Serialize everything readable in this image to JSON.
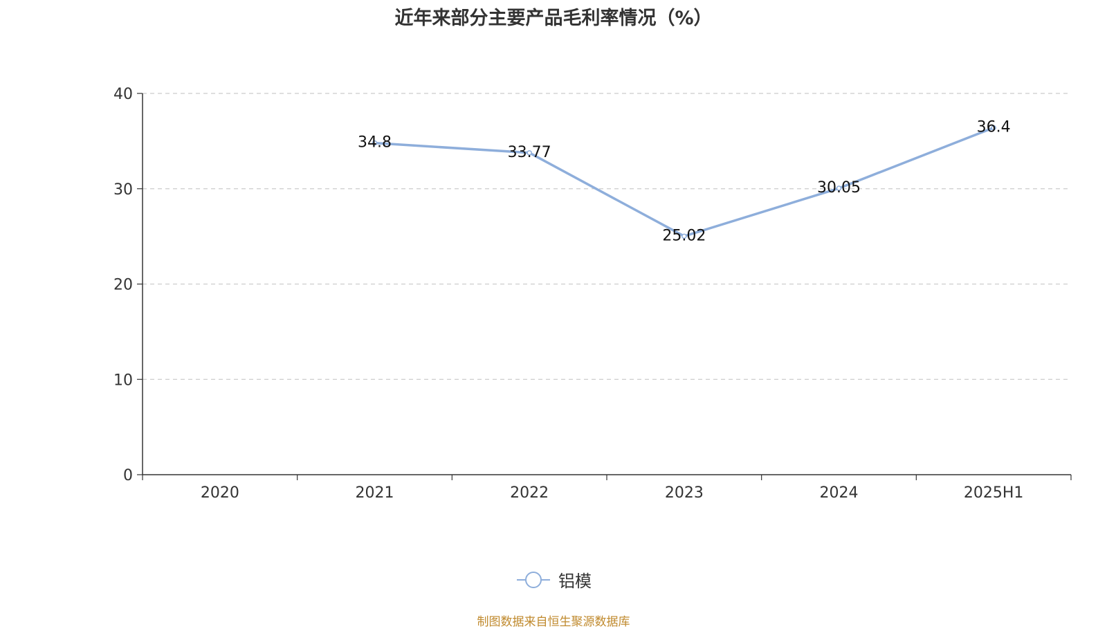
{
  "chart_data": {
    "type": "line",
    "title": "近年来部分主要产品毛利率情况（%）",
    "categories": [
      "2020",
      "2021",
      "2022",
      "2023",
      "2024",
      "2025H1"
    ],
    "series": [
      {
        "name": "铝模",
        "values": [
          null,
          34.8,
          33.77,
          25.02,
          30.05,
          36.4
        ],
        "labels": [
          "",
          "34.8",
          "33.77",
          "25.02",
          "30.05",
          "36.4"
        ],
        "color": "#8eaedb"
      }
    ],
    "ylim": [
      0,
      40
    ],
    "yticks": [
      "0",
      "10",
      "20",
      "30",
      "40"
    ],
    "grid": true,
    "legend_position": "bottom-center",
    "xlabel": "",
    "ylabel": ""
  },
  "source": "制图数据来自恒生聚源数据库"
}
